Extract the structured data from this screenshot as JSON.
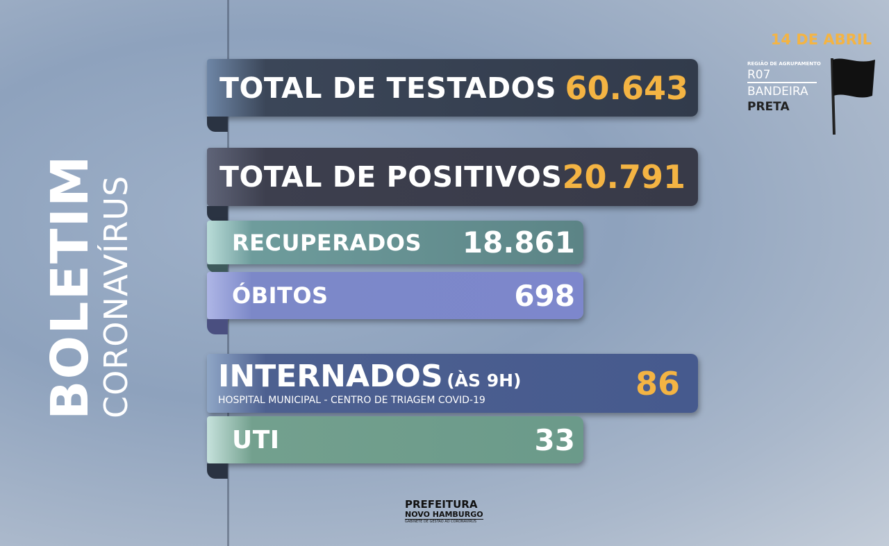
{
  "title": {
    "main": "BOLETIM",
    "sub": "CORONAVÍRUS"
  },
  "date": "14 DE ABRIL",
  "region": {
    "label": "REGIÃO DE AGRUPAMENTO",
    "code": "R07",
    "flag_line1": "BANDEIRA",
    "flag_line2": "PRETA"
  },
  "stats": [
    {
      "label": "TOTAL DE TESTADOS",
      "value": "60.643"
    },
    {
      "label": "TOTAL DE POSITIVOS",
      "value": "20.791"
    },
    {
      "label": "RECUPERADOS",
      "value": "18.861"
    },
    {
      "label": "ÓBITOS",
      "value": "698"
    }
  ],
  "internados": {
    "label": "INTERNADOS",
    "note": "(ÀS 9H)",
    "detail": "HOSPITAL MUNICIPAL - CENTRO DE TRIAGEM COVID-19",
    "value": "86"
  },
  "uti": {
    "label": "UTI",
    "value": "33"
  },
  "footer": {
    "line1": "PREFEITURA",
    "line2": "NOVO HAMBURGO",
    "line3": "GABINETE DE GESTÃO AO CORONAVÍRUS"
  }
}
